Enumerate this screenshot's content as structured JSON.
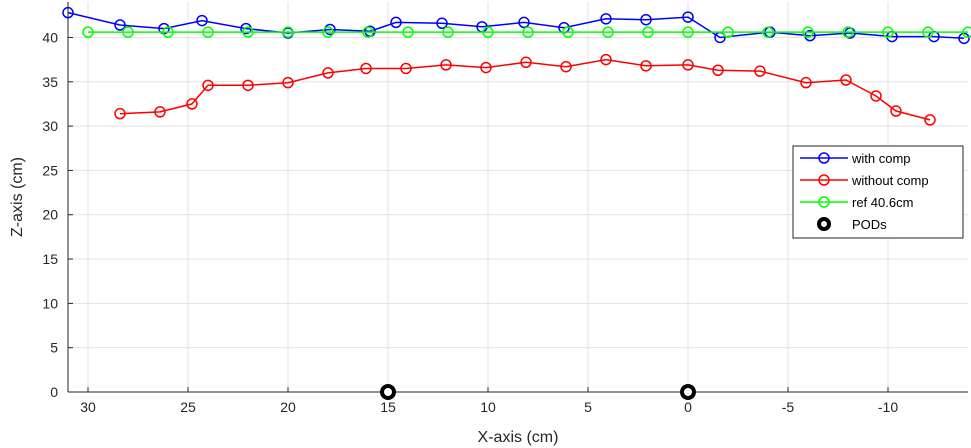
{
  "chart_data": {
    "type": "line",
    "xlabel": "X-axis (cm)",
    "ylabel": "Z-axis (cm)",
    "xlim": [
      31,
      -14
    ],
    "x_reversed": true,
    "ylim": [
      0,
      44
    ],
    "x_ticks": [
      30,
      25,
      20,
      15,
      10,
      5,
      0,
      -5,
      -10
    ],
    "x_tick_labels": [
      "30",
      "25",
      "20",
      "15",
      "10",
      "5",
      "0",
      "-5",
      "-10"
    ],
    "y_ticks": [
      0,
      5,
      10,
      15,
      20,
      25,
      30,
      35,
      40
    ],
    "y_tick_labels": [
      "0",
      "5",
      "10",
      "15",
      "20",
      "25",
      "30",
      "35",
      "40"
    ],
    "grid": true,
    "legend_position": "right",
    "series": [
      {
        "name": "with comp",
        "color": "#0000ff",
        "marker": "open-circle",
        "x": [
          31,
          28.4,
          26.2,
          24.3,
          22.1,
          20,
          17.9,
          15.9,
          14.6,
          12.3,
          10.3,
          8.2,
          6.2,
          4.1,
          2.1,
          0,
          -1.6,
          -4.1,
          -6.1,
          -8.1,
          -10.2,
          -12.3,
          -13.8
        ],
        "y": [
          42.8,
          41.4,
          41.0,
          41.9,
          41.0,
          40.5,
          40.9,
          40.7,
          41.7,
          41.6,
          41.2,
          41.7,
          41.1,
          42.1,
          42.0,
          42.3,
          40.0,
          40.6,
          40.2,
          40.5,
          40.1,
          40.1,
          39.9
        ]
      },
      {
        "name": "without comp",
        "color": "#ff0000",
        "marker": "open-circle",
        "x": [
          28.4,
          26.4,
          24.8,
          24.0,
          22.0,
          20,
          18.0,
          16.1,
          14.1,
          12.1,
          10.1,
          8.1,
          6.1,
          4.1,
          2.1,
          0,
          -1.5,
          -3.6,
          -5.9,
          -7.9,
          -9.4,
          -10.4,
          -12.1
        ],
        "y": [
          31.4,
          31.6,
          32.5,
          34.6,
          34.6,
          34.9,
          36.0,
          36.5,
          36.5,
          36.9,
          36.6,
          37.2,
          36.7,
          37.5,
          36.8,
          36.9,
          36.3,
          36.2,
          34.9,
          35.2,
          33.4,
          31.7,
          30.7
        ]
      },
      {
        "name": "ref 40.6cm",
        "color": "#00ff00",
        "marker": "open-circle",
        "x": [
          30,
          28,
          26,
          24,
          22,
          20,
          18,
          16,
          14,
          12,
          10,
          8,
          6,
          4,
          2,
          0,
          -2,
          -4,
          -6,
          -8,
          -10,
          -12,
          -14
        ],
        "y": [
          40.6,
          40.6,
          40.6,
          40.6,
          40.6,
          40.6,
          40.6,
          40.6,
          40.6,
          40.6,
          40.6,
          40.6,
          40.6,
          40.6,
          40.6,
          40.6,
          40.6,
          40.6,
          40.6,
          40.6,
          40.6,
          40.6,
          40.6
        ]
      },
      {
        "name": "PODs",
        "color": "#000000",
        "marker": "filled-ring",
        "x": [
          15,
          0
        ],
        "y": [
          0,
          0
        ]
      }
    ]
  }
}
